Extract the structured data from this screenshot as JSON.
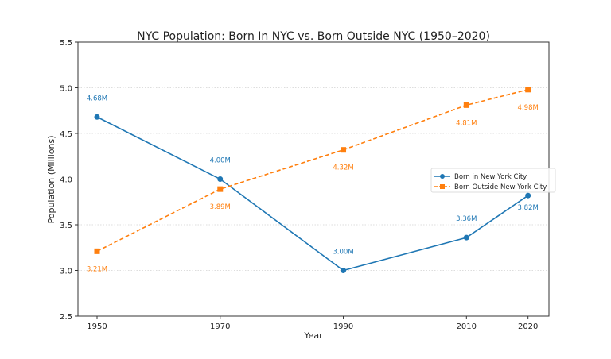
{
  "chart_data": {
    "type": "line",
    "title": "NYC Population: Born In NYC vs. Born Outside NYC (1950–2020)",
    "xlabel": "Year",
    "ylabel": "Population (Millions)",
    "x": [
      1950,
      1970,
      1990,
      2010,
      2020
    ],
    "xticks": [
      "1950",
      "1970",
      "1990",
      "2010",
      "2020"
    ],
    "yticks": [
      "2.5",
      "3.0",
      "3.5",
      "4.0",
      "4.5",
      "5.0",
      "5.5"
    ],
    "ytick_values": [
      2.5,
      3.0,
      3.5,
      4.0,
      4.5,
      5.0,
      5.5
    ],
    "xlim": [
      1946.9,
      2023.4
    ],
    "ylim": [
      2.5,
      5.5
    ],
    "grid": "horizontal dotted",
    "legend_position": "center-right",
    "series": [
      {
        "name": "Born in New York City",
        "values": [
          4.68,
          4.0,
          3.0,
          3.36,
          3.82
        ],
        "labels": [
          "4.68M",
          "4.00M",
          "3.00M",
          "3.36M",
          "3.82M"
        ],
        "color": "#1f77b4",
        "marker": "circle",
        "linestyle": "solid",
        "label_side": "above"
      },
      {
        "name": "Born Outside New York City",
        "values": [
          3.21,
          3.89,
          4.32,
          4.81,
          4.98
        ],
        "labels": [
          "3.21M",
          "3.89M",
          "4.32M",
          "4.81M",
          "4.98M"
        ],
        "color": "#ff7f0e",
        "marker": "square",
        "linestyle": "dashed",
        "label_side": "below"
      }
    ]
  }
}
